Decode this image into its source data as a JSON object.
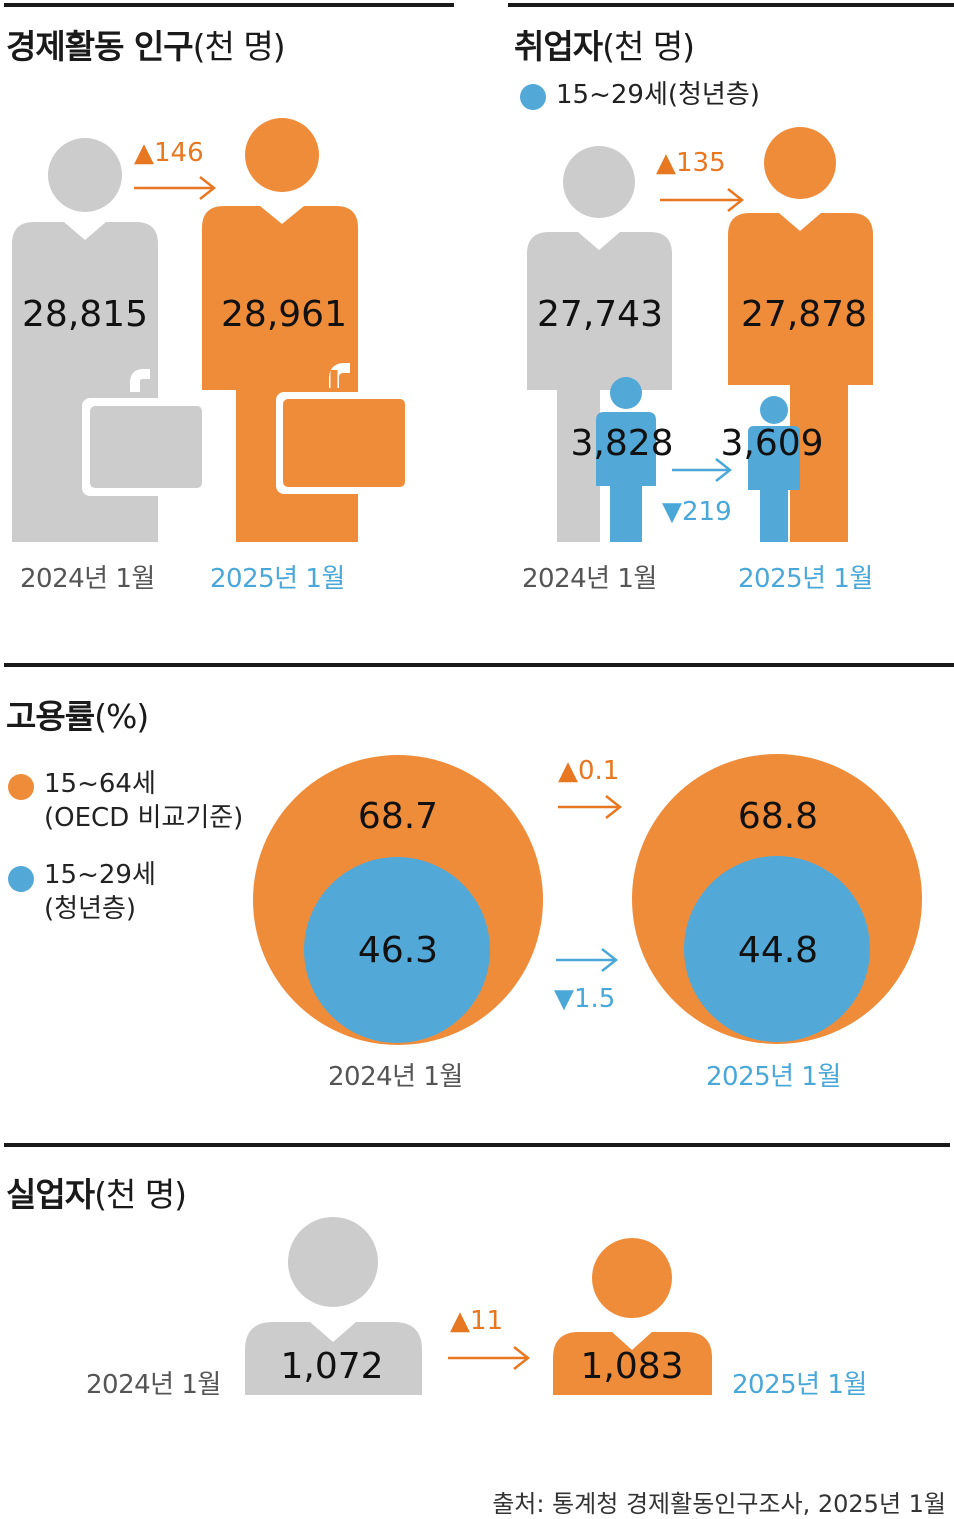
{
  "colors": {
    "orange": "#ef8c3a",
    "blue": "#52a9d7",
    "gray": "#cbcccb",
    "orange_text": "#e87722",
    "blue_text": "#4aa8d8"
  },
  "icons": [
    "person-icon",
    "briefcase-icon",
    "arrow-right-icon",
    "triangle-up-icon",
    "triangle-down-icon",
    "circle-icon"
  ],
  "sections": {
    "labor_force": {
      "title": "경제활동 인구",
      "unit": "(천 명)"
    },
    "employed": {
      "title": "취업자",
      "unit": "(천 명)",
      "legend": "15~29세(청년층)"
    },
    "employment_rate": {
      "title": "고용률",
      "unit": "(%)",
      "legend1_line1": "15~64세",
      "legend1_line2": "(OECD 비교기준)",
      "legend2_line1": "15~29세",
      "legend2_line2": "(청년층)"
    },
    "unemployed": {
      "title": "실업자",
      "unit": "(천 명)"
    }
  },
  "source": "출처: 통계청 경제활동인구조사, 2025년 1월",
  "chart_data": [
    {
      "type": "bar",
      "title": "경제활동 인구(천 명)",
      "categories": [
        "2024년 1월",
        "2025년 1월"
      ],
      "values": [
        "28,815",
        "28,961"
      ],
      "change": "▲146"
    },
    {
      "type": "bar",
      "title": "취업자(천 명)",
      "categories": [
        "2024년 1월",
        "2025년 1월"
      ],
      "series": [
        {
          "name": "",
          "values": [
            "27,743",
            "27,878"
          ],
          "change": "▲135"
        },
        {
          "name": "15~29세(청년층)",
          "values": [
            "3,828",
            "3,609"
          ],
          "change": "▼219"
        }
      ]
    },
    {
      "type": "bar",
      "title": "고용률(%)",
      "categories": [
        "2024년 1월",
        "2025년 1월"
      ],
      "series": [
        {
          "name": "15~64세 (OECD 비교기준)",
          "values": [
            "68.7",
            "68.8"
          ],
          "change": "▲0.1"
        },
        {
          "name": "15~29세 (청년층)",
          "values": [
            "46.3",
            "44.8"
          ],
          "change": "▼1.5"
        }
      ]
    },
    {
      "type": "bar",
      "title": "실업자(천 명)",
      "categories": [
        "2024년 1월",
        "2025년 1월"
      ],
      "values": [
        "1,072",
        "1,083"
      ],
      "change": "▲11"
    }
  ]
}
